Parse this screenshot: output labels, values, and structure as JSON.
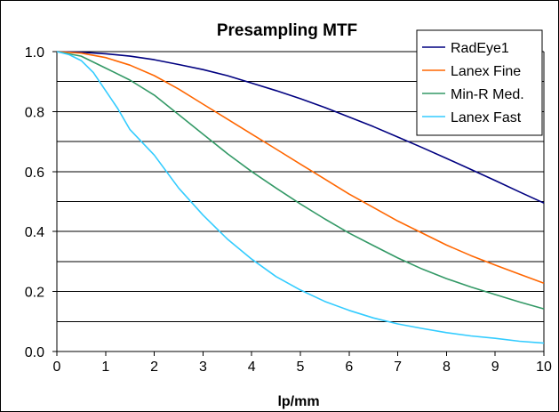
{
  "chart_data": {
    "type": "line",
    "title": "Presampling MTF",
    "xlabel": "lp/mm",
    "ylabel": "",
    "xlim": [
      0,
      10
    ],
    "ylim": [
      0.0,
      1.0
    ],
    "x_ticks": [
      "0",
      "1",
      "2",
      "3",
      "4",
      "5",
      "6",
      "7",
      "8",
      "9",
      "10"
    ],
    "y_ticks": [
      "0.0",
      "0.2",
      "0.4",
      "0.6",
      "0.8",
      "1.0"
    ],
    "grid": {
      "major_y": true,
      "minor_y": true,
      "x": false
    },
    "legend_position": "top-right",
    "series": [
      {
        "name": "RadEye1",
        "color": "#000080",
        "x": [
          0,
          0.5,
          1,
          1.5,
          2,
          2.5,
          3,
          3.5,
          4,
          4.5,
          5,
          5.5,
          6,
          6.5,
          7,
          7.5,
          8,
          8.5,
          9,
          9.5,
          10
        ],
        "y": [
          1.0,
          0.998,
          0.993,
          0.985,
          0.973,
          0.957,
          0.94,
          0.92,
          0.895,
          0.87,
          0.843,
          0.814,
          0.782,
          0.75,
          0.715,
          0.68,
          0.644,
          0.607,
          0.57,
          0.532,
          0.495
        ]
      },
      {
        "name": "Lanex Fine",
        "color": "#FF6600",
        "x": [
          0,
          0.5,
          1,
          1.5,
          2,
          2.5,
          3,
          3.5,
          4,
          4.5,
          5,
          5.5,
          6,
          6.5,
          7,
          7.5,
          8,
          8.5,
          9,
          9.5,
          10
        ],
        "y": [
          1.0,
          0.995,
          0.98,
          0.955,
          0.92,
          0.875,
          0.825,
          0.775,
          0.725,
          0.675,
          0.625,
          0.575,
          0.525,
          0.48,
          0.435,
          0.395,
          0.355,
          0.32,
          0.288,
          0.258,
          0.228
        ]
      },
      {
        "name": "Min-R Med.",
        "color": "#339966",
        "x": [
          0,
          0.5,
          1,
          1.5,
          2,
          2.5,
          3,
          3.5,
          4,
          4.5,
          5,
          5.5,
          6,
          6.5,
          7,
          7.5,
          8,
          8.5,
          9,
          9.5,
          10
        ],
        "y": [
          1.0,
          0.985,
          0.945,
          0.905,
          0.855,
          0.79,
          0.725,
          0.66,
          0.6,
          0.545,
          0.492,
          0.442,
          0.395,
          0.353,
          0.312,
          0.275,
          0.243,
          0.215,
          0.19,
          0.165,
          0.142
        ]
      },
      {
        "name": "Lanex Fast",
        "color": "#33CCFF",
        "x": [
          0,
          0.25,
          0.5,
          0.75,
          1,
          1.25,
          1.5,
          2,
          2.5,
          3,
          3.5,
          4,
          4.5,
          5,
          5.5,
          6,
          6.5,
          7,
          7.5,
          8,
          8.5,
          9,
          9.5,
          10
        ],
        "y": [
          1.0,
          0.99,
          0.97,
          0.93,
          0.87,
          0.81,
          0.74,
          0.655,
          0.545,
          0.455,
          0.375,
          0.308,
          0.25,
          0.205,
          0.167,
          0.137,
          0.112,
          0.092,
          0.077,
          0.063,
          0.052,
          0.044,
          0.034,
          0.028
        ]
      }
    ]
  }
}
